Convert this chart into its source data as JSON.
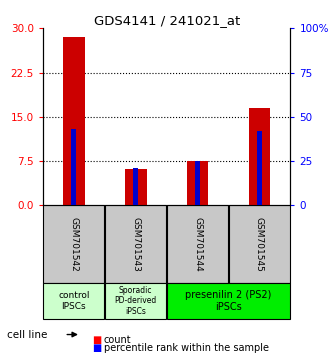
{
  "title": "GDS4141 / 241021_at",
  "samples": [
    "GSM701542",
    "GSM701543",
    "GSM701544",
    "GSM701545"
  ],
  "counts": [
    28.5,
    6.2,
    7.5,
    16.5
  ],
  "percentile_ranks": [
    43,
    21,
    25,
    42
  ],
  "left_ylim": [
    0,
    30
  ],
  "left_yticks": [
    0,
    7.5,
    15,
    22.5,
    30
  ],
  "right_ylim": [
    0,
    100
  ],
  "right_yticks": [
    0,
    25,
    50,
    75,
    100
  ],
  "right_yticklabels": [
    "0",
    "25",
    "50",
    "75",
    "100%"
  ],
  "bar_color": "#cc0000",
  "percentile_color": "#0000cc",
  "sample_box_color": "#c8c8c8",
  "legend_count_label": "count",
  "legend_percentile_label": "percentile rank within the sample",
  "cell_line_label": "cell line",
  "bar_width": 0.35,
  "pct_bar_width": 0.08
}
